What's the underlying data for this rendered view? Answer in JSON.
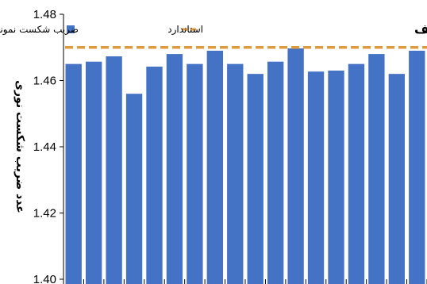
{
  "chart_data": {
    "type": "bar",
    "title": "",
    "panel_label": "الف",
    "xlabel": "",
    "ylabel": "عدد ضریب شکست نوری",
    "ylim": [
      1.4,
      1.48
    ],
    "yticks": [
      "1.40",
      "1.42",
      "1.44",
      "1.46",
      "1.48"
    ],
    "grid": false,
    "legend_position": "top",
    "series": [
      {
        "name": "ضریب شکست نمونه",
        "type": "bar",
        "color": "#4472C4",
        "values": [
          1.465,
          1.4657,
          1.4673,
          1.456,
          1.4642,
          1.468,
          1.465,
          1.469,
          1.465,
          1.462,
          1.4657,
          1.4697,
          1.4627,
          1.463,
          1.465,
          1.468,
          1.462,
          1.469
        ]
      },
      {
        "name": "استاندارد",
        "type": "line-dashed",
        "color": "#E09A3E",
        "value": 1.47
      }
    ]
  }
}
